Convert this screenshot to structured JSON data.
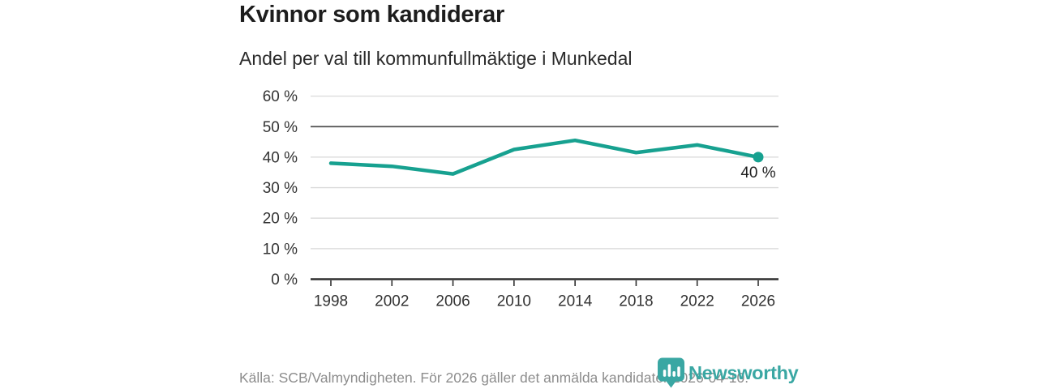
{
  "header": {
    "title": "Kvinnor som kandiderar",
    "subtitle": "Andel per val till kommunfullmäktige i Munkedal"
  },
  "chart_data": {
    "type": "line",
    "title": "Kvinnor som kandiderar",
    "subtitle": "Andel per val till kommunfullmäktige i Munkedal",
    "categories": [
      "1998",
      "2002",
      "2006",
      "2010",
      "2014",
      "2018",
      "2022",
      "2026"
    ],
    "values": [
      38,
      37,
      34.5,
      42.5,
      45.5,
      41.5,
      44,
      40
    ],
    "unit": "%",
    "xlabel": "",
    "ylabel": "",
    "ylim": [
      0,
      60
    ],
    "ytick_step": 10,
    "ytick_suffix": " %",
    "reference_line": 50,
    "grid": true,
    "legend": "none",
    "last_point_label": "40 %",
    "line_color": "#17a190",
    "grid_color": "#d9d9d9",
    "reference_line_color": "#4f4f4f",
    "axis_color": "#2f2f2f",
    "tick_label_color": "#333333"
  },
  "footer": {
    "source": "Källa: SCB/Valmyndigheten. För 2026 gäller det anmälda kandidater 2026-04-10.",
    "brand": "Newsworthy",
    "brand_color": "#3aa7a3"
  }
}
